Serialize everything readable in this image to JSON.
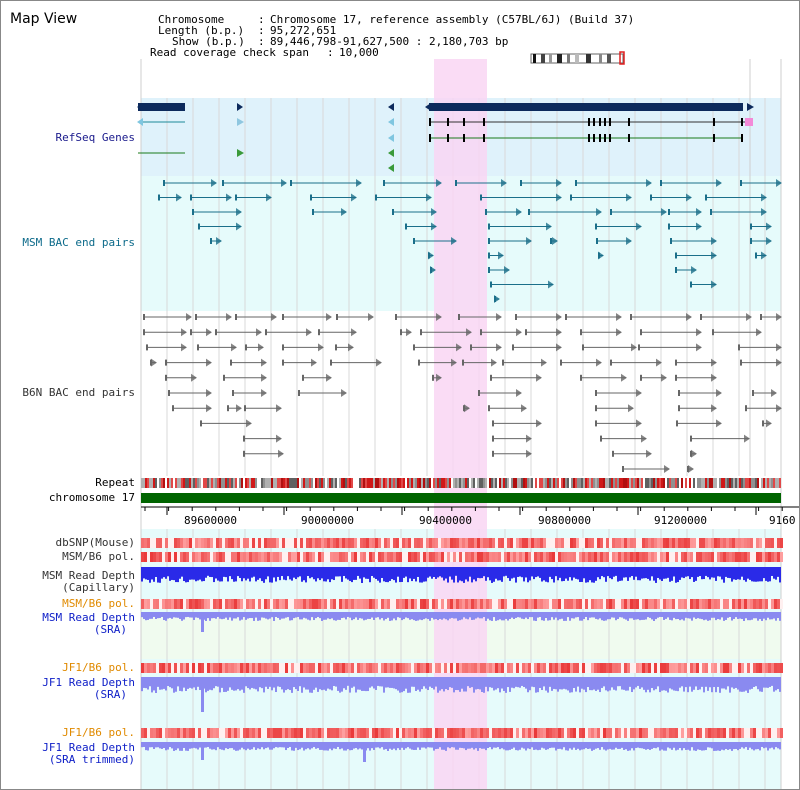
{
  "title": "Map View",
  "info": {
    "chromosome_label": "Chromosome",
    "chromosome_value": "Chromosome 17, reference assembly (C57BL/6J) (Build 37)",
    "length_label": "Length (b.p.)",
    "length_value": "95,272,651",
    "show_label": "Show (b.p.)",
    "show_value": "89,446,798-91,627,500 : 2,180,703 bp",
    "coverage_label": "Read coverage check span",
    "coverage_value": "10,000"
  },
  "tracks": {
    "refseq": "RefSeq Genes",
    "msm_bac": "MSM BAC end pairs",
    "b6n_bac": "B6N BAC end pairs",
    "repeat": "Repeat",
    "chromosome": "chromosome 17",
    "dbsnp": "dbSNP(Mouse)",
    "msm_b6_pol": "MSM/B6 pol.",
    "msm_depth_cap_1": "MSM Read Depth",
    "msm_depth_cap_2": "(Capillary)",
    "msm_b6_pol2": "MSM/B6 pol.",
    "msm_depth_sra_1": "MSM Read Depth",
    "msm_depth_sra_2": "(SRA)",
    "jf1_b6_pol": "JF1/B6 pol.",
    "jf1_depth_sra_1": "JF1 Read Depth",
    "jf1_depth_sra_2": "(SRA)",
    "jf1_b6_pol2": "JF1/B6 pol.",
    "jf1_depth_trim_1": "JF1 Read Depth",
    "jf1_depth_trim_2": "(SRA trimmed)"
  },
  "axis_ticks": [
    "89600000",
    "90000000",
    "90400000",
    "90800000",
    "91200000",
    "9160"
  ],
  "colors": {
    "refseq_bg": "#dff2fb",
    "bac_bg": "#e6fbfb",
    "highlight": "#f9d6f3",
    "gene": "#0c2a5c",
    "bac_teal": "#1b6f8a",
    "bac_gray": "#666666",
    "chromosome_bar": "#006400",
    "pol_red": "#e83a3a",
    "depth_blue": "#2a2ae8",
    "depth_light": "#8a8af0"
  }
}
